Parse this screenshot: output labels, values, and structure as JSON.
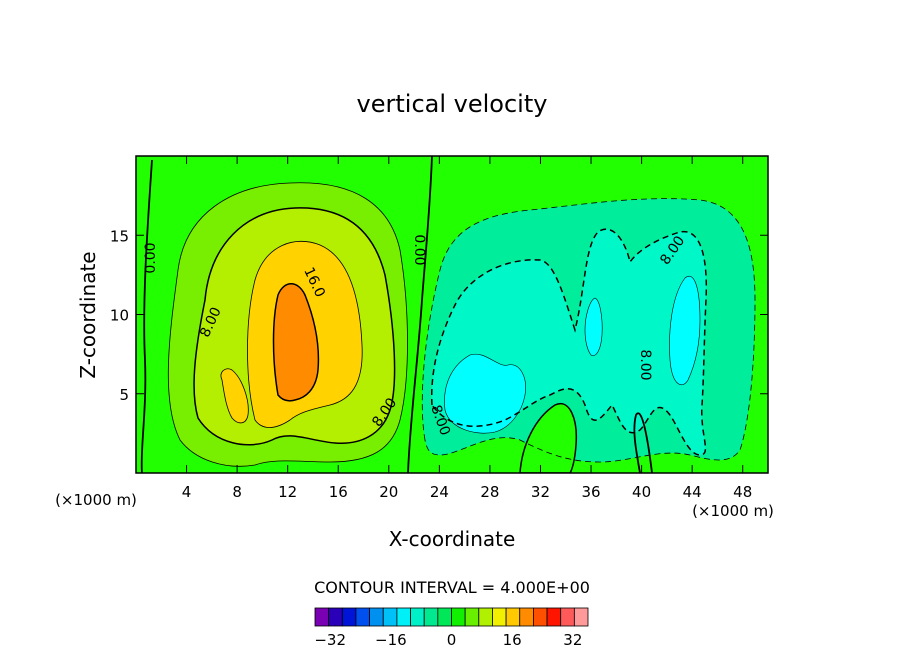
{
  "chart_data": {
    "type": "contour",
    "title": "vertical velocity",
    "xlabel": "X-coordinate",
    "ylabel": "Z-coordinate",
    "x_unit_left": "(×1000 m)",
    "x_unit_right": "(×1000 m)",
    "xlim": [
      0,
      50
    ],
    "ylim": [
      0,
      20
    ],
    "x_ticks": [
      4,
      8,
      12,
      16,
      20,
      24,
      28,
      32,
      36,
      40,
      44,
      48
    ],
    "y_ticks": [
      5,
      10,
      15
    ],
    "contour_labels": [
      "0.00",
      "0.00",
      "8.00",
      "16.0",
      "8.00",
      "8.00",
      "8.00",
      "8.00"
    ],
    "contour_interval_text": "CONTOUR INTERVAL = 4.000E+00",
    "colorbar": {
      "min": -36,
      "max": 36,
      "step": 4,
      "tick_values": [
        -32,
        -16,
        0,
        16,
        32
      ],
      "tick_labels": [
        "−32",
        "−16",
        "0",
        "16",
        "32"
      ],
      "colors": [
        "#7a00b4",
        "#2a00b8",
        "#0014d8",
        "#0050f0",
        "#0090f0",
        "#00c0f8",
        "#00f0f8",
        "#00f0c8",
        "#00e890",
        "#00e858",
        "#10f000",
        "#68f000",
        "#b0f000",
        "#f0f000",
        "#ffc800",
        "#ff8c00",
        "#ff5000",
        "#ff1400",
        "#ff5a5a",
        "#ff9a9a"
      ]
    },
    "colors": {
      "background_zero": "#22ff00",
      "pos_4": "#78ee00",
      "pos_8": "#b4ee00",
      "pos_12": "#ffd200",
      "pos_16": "#ff8c00",
      "neg_4": "#00ee9c",
      "neg_8": "#00f7c8",
      "neg_12": "#00ffff"
    }
  }
}
